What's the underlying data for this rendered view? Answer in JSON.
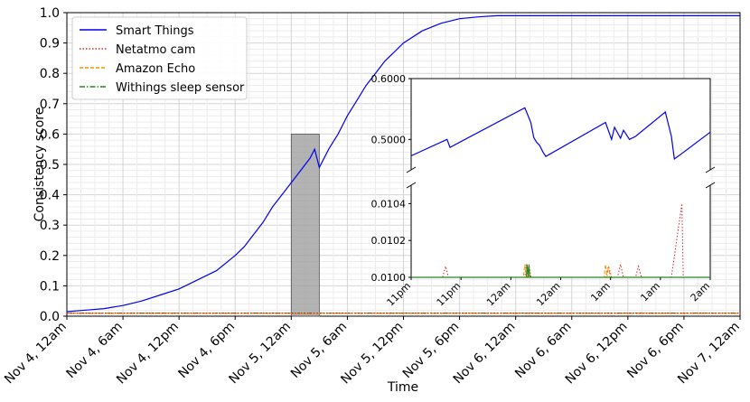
{
  "chart_data": [
    {
      "type": "line",
      "xlabel": "Time",
      "ylabel": "Consistency score",
      "ylim": [
        0,
        1
      ],
      "x_tick_labels": [
        "Nov 4, 12am",
        "Nov 4, 6am",
        "Nov 4, 12pm",
        "Nov 4, 6pm",
        "Nov 5, 12am",
        "Nov 5, 6am",
        "Nov 5, 12pm",
        "Nov 5, 6pm",
        "Nov 6, 12am",
        "Nov 6, 6am",
        "Nov 6, 12pm",
        "Nov 6, 6pm",
        "Nov 7, 12am"
      ],
      "xlim_hours": [
        0,
        72
      ],
      "y_ticks": [
        "0.0",
        "0.1",
        "0.2",
        "0.3",
        "0.4",
        "0.5",
        "0.6",
        "0.7",
        "0.8",
        "0.9",
        "1.0"
      ],
      "grid": true,
      "legend_position": "top-left",
      "series": [
        {
          "name": "Smart Things",
          "color": "#0000ee",
          "style": "solid",
          "x": [
            0,
            2,
            4,
            6,
            8,
            10,
            12,
            14,
            16,
            18,
            19,
            20,
            21,
            22,
            23,
            24,
            25,
            26,
            26.5,
            27,
            28,
            29,
            30,
            31,
            32,
            33,
            34,
            35,
            36,
            38,
            40,
            42,
            44,
            46,
            48,
            52,
            56,
            60,
            64,
            68,
            72
          ],
          "y": [
            0.015,
            0.02,
            0.025,
            0.035,
            0.05,
            0.07,
            0.09,
            0.12,
            0.15,
            0.2,
            0.23,
            0.27,
            0.31,
            0.36,
            0.4,
            0.44,
            0.48,
            0.52,
            0.55,
            0.49,
            0.55,
            0.6,
            0.66,
            0.71,
            0.76,
            0.8,
            0.84,
            0.87,
            0.9,
            0.94,
            0.965,
            0.98,
            0.986,
            0.99,
            0.99,
            0.99,
            0.99,
            0.99,
            0.99,
            0.99,
            0.99
          ]
        },
        {
          "name": "Netatmo cam",
          "color": "#dd2222",
          "style": "dotted",
          "x": [
            0,
            72
          ],
          "y": [
            0.01,
            0.01
          ]
        },
        {
          "name": "Amazon Echo",
          "color": "#ee9900",
          "style": "dashed",
          "x": [
            0,
            72
          ],
          "y": [
            0.01,
            0.01
          ]
        },
        {
          "name": "Withings sleep sensor",
          "color": "#228822",
          "style": "dashdot",
          "x": [
            0,
            72
          ],
          "y": [
            0.01,
            0.01
          ]
        }
      ],
      "highlight_region": {
        "x": [
          24,
          27
        ],
        "y": [
          0,
          0.6
        ]
      }
    },
    {
      "type": "line",
      "inset": true,
      "x_tick_labels": [
        "11pm",
        "11pm",
        "12am",
        "12am",
        "1am",
        "1am",
        "2am"
      ],
      "upper_y_ticks": [
        "0.6000",
        "0.5000"
      ],
      "upper_ylim": [
        0.45,
        0.6
      ],
      "lower_y_ticks": [
        "0.0104",
        "0.0102",
        "0.0100"
      ],
      "lower_ylim": [
        0.01,
        0.0105
      ],
      "xlim": [
        0,
        1
      ],
      "series": [
        {
          "name": "Smart Things",
          "color": "#0000ee",
          "x": [
            0,
            0.12,
            0.13,
            0.38,
            0.39,
            0.4,
            0.41,
            0.42,
            0.43,
            0.44,
            0.45,
            0.65,
            0.67,
            0.68,
            0.7,
            0.71,
            0.73,
            0.75,
            0.85,
            0.87,
            0.88,
            0.9,
            1.0
          ],
          "y": [
            0.473,
            0.5,
            0.487,
            0.552,
            0.54,
            0.528,
            0.503,
            0.495,
            0.49,
            0.48,
            0.472,
            0.528,
            0.5,
            0.52,
            0.502,
            0.515,
            0.5,
            0.505,
            0.545,
            0.505,
            0.468,
            0.475,
            0.512
          ]
        },
        {
          "name": "Netatmo cam",
          "color": "#dd2222",
          "x": [
            0,
            0.105,
            0.115,
            0.125,
            0.38,
            0.385,
            0.39,
            0.395,
            0.4,
            0.41,
            0.65,
            0.66,
            0.67,
            0.69,
            0.7,
            0.71,
            0.75,
            0.76,
            0.77,
            0.87,
            0.905,
            0.91,
            0.92,
            1.0
          ],
          "y": [
            0.01,
            0.01,
            0.01006,
            0.01,
            0.01,
            0.01007,
            0.01,
            0.01006,
            0.01,
            0.01,
            0.01,
            0.01006,
            0.01,
            0.01,
            0.01007,
            0.01,
            0.01,
            0.01006,
            0.01,
            0.01,
            0.0104,
            0.01,
            0.01,
            0.01
          ]
        },
        {
          "name": "Amazon Echo",
          "color": "#ee9900",
          "x": [
            0,
            0.375,
            0.38,
            0.385,
            0.39,
            0.395,
            0.4,
            0.645,
            0.65,
            0.655,
            0.66,
            0.665,
            0.67,
            1.0
          ],
          "y": [
            0.01,
            0.01,
            0.01007,
            0.01,
            0.01006,
            0.01,
            0.01,
            0.01,
            0.01007,
            0.01,
            0.01006,
            0.01,
            0.01,
            0.01
          ]
        },
        {
          "name": "Withings sleep sensor",
          "color": "#228822",
          "x": [
            0,
            0.385,
            0.388,
            0.391,
            0.394,
            0.397,
            0.4,
            1.0
          ],
          "y": [
            0.01,
            0.01,
            0.01007,
            0.01,
            0.01007,
            0.01,
            0.01,
            0.01
          ]
        }
      ]
    }
  ]
}
